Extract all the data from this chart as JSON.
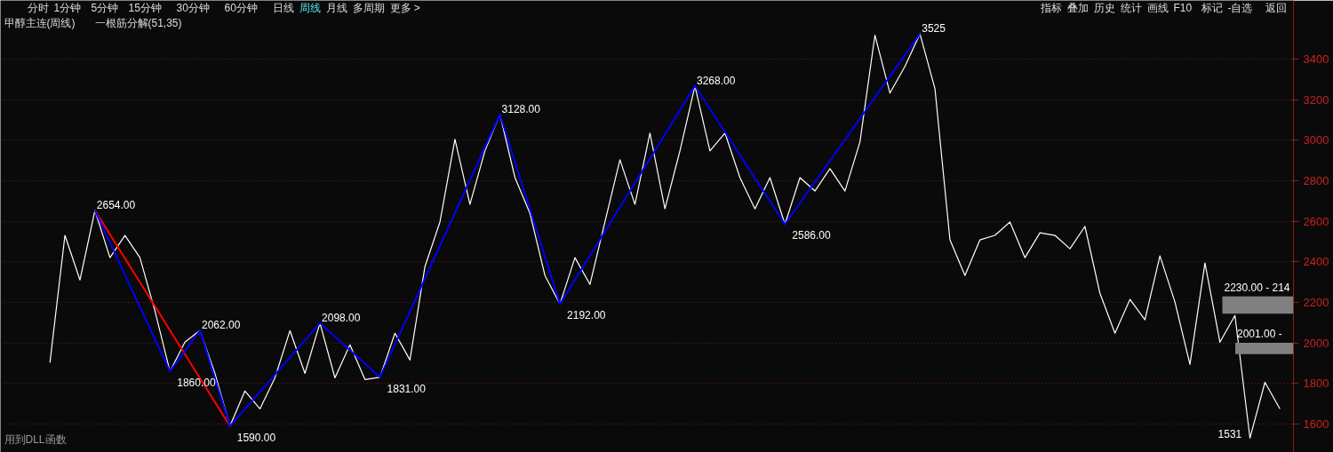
{
  "chart_data": {
    "type": "line",
    "title": "甲醇主连(周线)",
    "subtitle": "一根筋分解(51,35)",
    "categories": [
      null,
      null,
      null,
      null,
      null,
      null,
      null,
      null,
      null,
      null,
      null,
      null,
      null,
      null,
      null,
      null,
      null,
      null,
      null,
      null,
      null,
      null,
      null,
      null,
      null,
      null,
      null,
      null,
      null,
      null,
      null,
      null,
      null,
      null,
      null,
      null,
      null,
      null,
      null,
      null,
      null,
      null,
      null,
      null,
      null,
      null,
      null,
      null,
      null,
      null,
      null,
      null,
      null,
      null,
      null,
      null,
      null,
      null,
      null,
      null,
      null,
      null,
      null,
      null,
      null,
      null,
      null,
      null,
      null,
      null,
      null,
      null,
      null,
      null,
      null,
      null,
      null,
      null,
      null,
      null,
      null,
      null,
      null
    ],
    "ylim": [
      1460,
      3690
    ],
    "yticks": [
      1600,
      1800,
      2000,
      2200,
      2400,
      2600,
      2800,
      3000,
      3200,
      3400
    ],
    "grid": "y",
    "series": [
      {
        "color": "#ffffff",
        "values": [
          1903,
          2531,
          2311,
          2654,
          2421,
          2531,
          2421,
          2158,
          1860,
          2004,
          2062,
          1850,
          1590,
          1763,
          1675,
          1828,
          2061,
          1850,
          2098,
          1828,
          1991,
          1820,
          1831,
          2048,
          1916,
          2377,
          2597,
          3005,
          2684,
          2948,
          3128,
          2816,
          2640,
          2333,
          2192,
          2421,
          2289,
          2597,
          2904,
          2684,
          3036,
          2662,
          2948,
          3268,
          2948,
          3036,
          2816,
          2662,
          2816,
          2586,
          2816,
          2750,
          2860,
          2750,
          2992,
          3519,
          3233,
          3365,
          3525,
          3255,
          2509,
          2333,
          2509,
          2531,
          2597,
          2421,
          2544,
          2531,
          2465,
          2575,
          2245,
          2048,
          2215,
          2114,
          2430,
          2202,
          1894,
          2395,
          2004,
          2136,
          1531,
          1806,
          1675
        ]
      },
      {
        "color": "#ff0000",
        "values": [
          null,
          null,
          null,
          2654,
          null,
          null,
          null,
          null,
          null,
          null,
          null,
          null,
          1590,
          null,
          null,
          null,
          null,
          null,
          null,
          null,
          null,
          null,
          null,
          null,
          null,
          null,
          null,
          null,
          null,
          null,
          null,
          null,
          null,
          null,
          null,
          null,
          null,
          null,
          null,
          null,
          null,
          null,
          null,
          null,
          null,
          null,
          null,
          null,
          null,
          null,
          null,
          null,
          null,
          null,
          null,
          null,
          null,
          null,
          null,
          null,
          null,
          null,
          null,
          null,
          null,
          null,
          null,
          null,
          null,
          null,
          null,
          null,
          null,
          null,
          null,
          null,
          null,
          null,
          null,
          null,
          null,
          null,
          null
        ]
      },
      {
        "color": "#0000ff",
        "values": [
          null,
          null,
          null,
          2654,
          null,
          null,
          null,
          null,
          1860,
          null,
          2062,
          null,
          1590,
          null,
          null,
          null,
          null,
          null,
          2098,
          null,
          null,
          null,
          1831,
          null,
          null,
          null,
          null,
          null,
          null,
          null,
          3128,
          null,
          null,
          null,
          2192,
          null,
          null,
          null,
          null,
          null,
          null,
          null,
          null,
          3268,
          null,
          null,
          null,
          null,
          null,
          2586,
          null,
          null,
          null,
          null,
          null,
          null,
          null,
          null,
          3525,
          null,
          null,
          null,
          null,
          null,
          null,
          null,
          null,
          null,
          null,
          null,
          null,
          null,
          null,
          null,
          null,
          null,
          null,
          null,
          null,
          null,
          null,
          null,
          null
        ]
      }
    ],
    "bands": [
      {
        "axis": "y",
        "from": 2145,
        "to": 2230,
        "label": "2230.00 - 214",
        "color": "#808080"
      },
      {
        "axis": "y",
        "from": 1945,
        "to": 2001,
        "label": "2001.00 -",
        "color": "#808080"
      }
    ],
    "annotations": [
      "分时",
      "1分钟",
      "5分钟",
      "15分钟",
      "30分钟",
      "60分钟",
      "日线",
      "周线",
      "月线",
      "多周期",
      "更多 >",
      "指标",
      "叠加",
      "历史",
      "统计",
      "画线",
      "F10",
      "标记",
      "-自选",
      "返回",
      "用到DLL函数",
      "2654.00",
      "1860.00",
      "2062.00",
      "1590.00",
      "2098.00",
      "1831.00",
      "3128.00",
      "2192.00",
      "3268.00",
      "2586.00",
      "3525",
      "1531"
    ]
  }
}
